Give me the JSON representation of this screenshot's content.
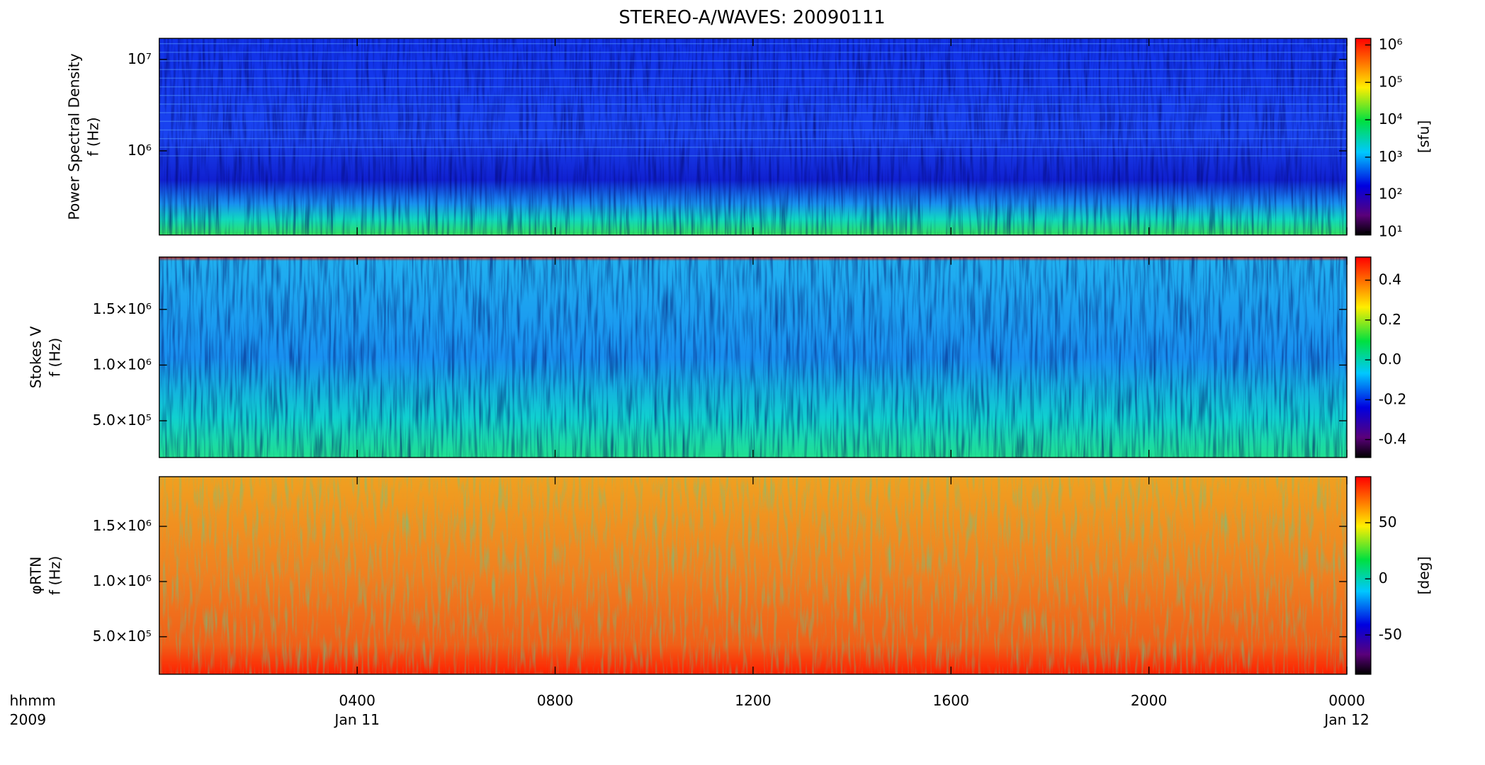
{
  "chart_data": [
    {
      "type": "heatmap",
      "title": "STEREO-A/WAVES: 20090111",
      "ylabel": [
        "Power Spectral Density",
        "f (Hz)"
      ],
      "log_y": true,
      "ylim": [
        120000,
        17000000
      ],
      "yticks": [
        {
          "value": 1000000,
          "label": "10⁶"
        },
        {
          "value": 10000000,
          "label": "10⁷"
        }
      ],
      "colorbar": {
        "label": "[sfu]",
        "log": true,
        "lim": [
          8.3,
          1500000
        ],
        "ticks": [
          {
            "value": 10,
            "label": "10¹"
          },
          {
            "value": 100,
            "label": "10²"
          },
          {
            "value": 1000,
            "label": "10³"
          },
          {
            "value": 10000,
            "label": "10⁴"
          },
          {
            "value": 100000,
            "label": "10⁵"
          },
          {
            "value": 1000000,
            "label": "10⁶"
          }
        ]
      }
    },
    {
      "type": "heatmap",
      "ylabel": [
        "Stokes V",
        "f (Hz)"
      ],
      "log_y": false,
      "ylim": [
        170000,
        1970000
      ],
      "yticks": [
        {
          "value": 500000,
          "label": "5.0×10⁵"
        },
        {
          "value": 1000000,
          "label": "1.0×10⁶"
        },
        {
          "value": 1500000,
          "label": "1.5×10⁶"
        }
      ],
      "colorbar": {
        "label": null,
        "log": false,
        "lim": [
          -0.49,
          0.516
        ],
        "ticks": [
          -0.4,
          -0.2,
          {
            "value": 0,
            "label": "0.0"
          },
          0.2,
          0.4
        ]
      }
    },
    {
      "type": "heatmap",
      "ylabel": [
        "φRTN",
        "f (Hz)"
      ],
      "log_y": false,
      "ylim": [
        160000,
        1950000
      ],
      "yticks": [
        {
          "value": 500000,
          "label": "5.0×10⁵"
        },
        {
          "value": 1000000,
          "label": "1.0×10⁶"
        },
        {
          "value": 1500000,
          "label": "1.5×10⁶"
        }
      ],
      "colorbar": {
        "label": "[deg]",
        "log": false,
        "lim": [
          -85,
          91
        ],
        "ticks": [
          -50,
          0,
          50
        ]
      },
      "xlim": [
        0,
        24
      ],
      "xticks": [
        {
          "value": 4,
          "label": "0400"
        },
        {
          "value": 8,
          "label": "0800"
        },
        {
          "value": 12,
          "label": "1200"
        },
        {
          "value": 16,
          "label": "1600"
        },
        {
          "value": 20,
          "label": "2000"
        },
        {
          "value": 24,
          "label": "0000"
        }
      ],
      "x_date_labels": [
        {
          "value": 4,
          "label": "Jan 11"
        },
        {
          "value": 24,
          "label": "Jan 12"
        }
      ],
      "xlabel": [
        "hhmm",
        "2009"
      ]
    }
  ]
}
